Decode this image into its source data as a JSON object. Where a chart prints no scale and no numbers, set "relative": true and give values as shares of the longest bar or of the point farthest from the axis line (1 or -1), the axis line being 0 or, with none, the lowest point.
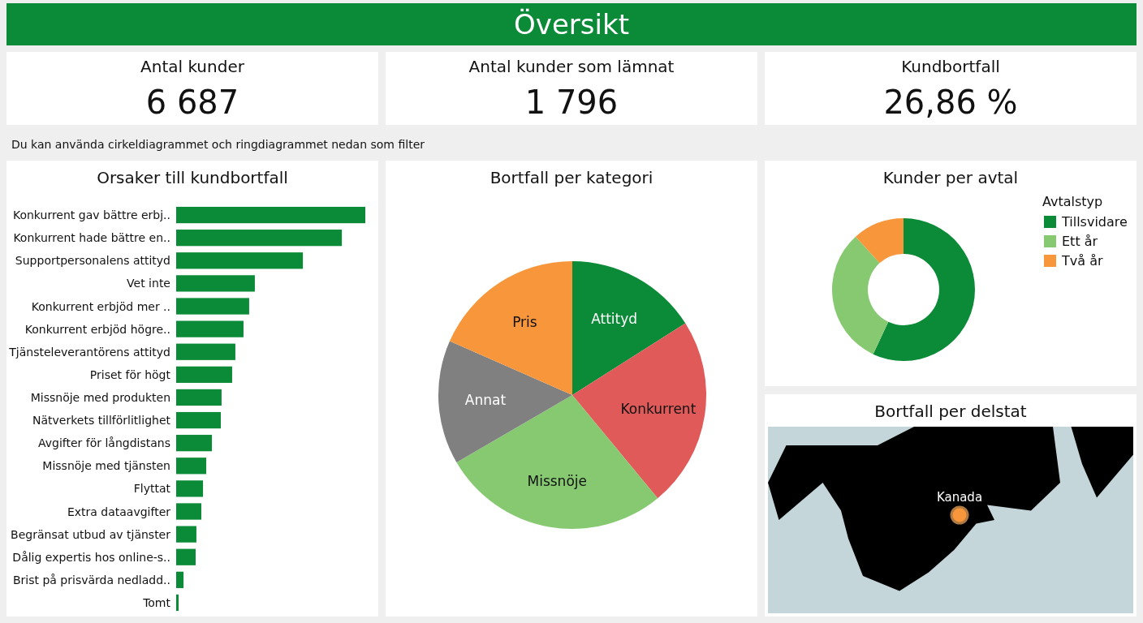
{
  "chart_data": [
    {
      "type": "other",
      "title": "Översikt",
      "annotations": [
        "Du kan använda cirkeldiagrammet och ringdiagrammet nedan som filter"
      ]
    },
    {
      "type": "other",
      "title": "Antal kunder",
      "annotations": [
        "6 687"
      ]
    },
    {
      "type": "other",
      "title": "Antal kunder som lämnat",
      "annotations": [
        "1 796"
      ]
    },
    {
      "type": "other",
      "title": "Kundbortfall",
      "annotations": [
        "26,86 %"
      ]
    },
    {
      "type": "bar",
      "title": "Orsaker till kundbortfall",
      "orientation": "horizontal",
      "relative": true,
      "color": "#0b8a37",
      "categories": [
        "Konkurrent gav bättre erbj..",
        "Konkurrent hade bättre en..",
        "Supportpersonalens attityd",
        "Vet inte",
        "Konkurrent erbjöd mer ..",
        "Konkurrent erbjöd högre..",
        "Tjänsteleverantörens attityd",
        "Priset för högt",
        "Missnöje med produkten",
        "Nätverkets tillförlitlighet",
        "Avgifter för långdistans",
        "Missnöje med tjänsten",
        "Flyttat",
        "Extra dataavgifter",
        "Begränsat utbud av tjänster",
        "Dålig expertis hos online-s..",
        "Brist på prisvärda nedladd..",
        "Tomt"
      ],
      "values": [
        1,
        0.876,
        0.67,
        0.416,
        0.386,
        0.356,
        0.313,
        0.296,
        0.24,
        0.236,
        0.189,
        0.159,
        0.142,
        0.133,
        0.107,
        0.103,
        0.039,
        0.013
      ]
    },
    {
      "type": "pie",
      "title": "Bortfall per kategori",
      "categories": [
        "Attityd",
        "Konkurrent",
        "Missnöje",
        "Annat",
        "Pris"
      ],
      "values": [
        16.0,
        23.0,
        27.6,
        15.0,
        18.4
      ],
      "colors": [
        "#0b8a37",
        "#e05a5a",
        "#86c971",
        "#808080",
        "#f7963a"
      ]
    },
    {
      "type": "donut",
      "title": "Kunder per avtal",
      "legend_title": "Avtalstyp",
      "legend": "top right",
      "categories": [
        "Tillsvidare",
        "Ett år",
        "Två år"
      ],
      "values": [
        57.0,
        31.3,
        11.7
      ],
      "colors": [
        "#0b8a37",
        "#86c971",
        "#f7963a"
      ]
    },
    {
      "type": "other",
      "title": "Bortfall per delstat",
      "annotations": [
        "Kanada"
      ]
    }
  ]
}
